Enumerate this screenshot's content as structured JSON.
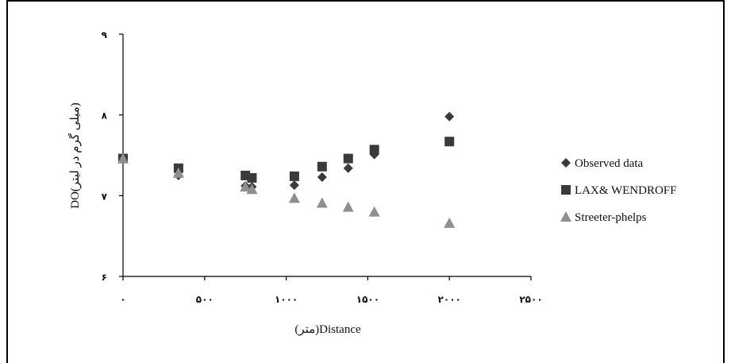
{
  "chart_data": {
    "type": "scatter",
    "title": "",
    "xlabel": "(متر)Distance",
    "ylabel": "DO(میلی گرم در لیتر)",
    "xlim": [
      0,
      2500
    ],
    "ylim": [
      6,
      9
    ],
    "x_ticks": [
      {
        "value": 0,
        "label": "۰"
      },
      {
        "value": 500,
        "label": "۵۰۰"
      },
      {
        "value": 1000,
        "label": "۱۰۰۰"
      },
      {
        "value": 1500,
        "label": "۱۵۰۰"
      },
      {
        "value": 2000,
        "label": "۲۰۰۰"
      },
      {
        "value": 2500,
        "label": "۲۵۰۰"
      }
    ],
    "y_ticks": [
      {
        "value": 6,
        "label": "۶"
      },
      {
        "value": 7,
        "label": "۷"
      },
      {
        "value": 8,
        "label": "۸"
      },
      {
        "value": 9,
        "label": "۹"
      }
    ],
    "grid": false,
    "legend_position": "right",
    "series": [
      {
        "name": "Observed data",
        "marker": "diamond",
        "color": "#3a3a3a",
        "points": [
          [
            0,
            7.46
          ],
          [
            340,
            7.25
          ],
          [
            750,
            7.12
          ],
          [
            790,
            7.11
          ],
          [
            1050,
            7.13
          ],
          [
            1220,
            7.23
          ],
          [
            1380,
            7.34
          ],
          [
            1540,
            7.51
          ],
          [
            2000,
            7.98
          ]
        ]
      },
      {
        "name": "LAX& WENDROFF",
        "marker": "square",
        "color": "#3a3a3a",
        "points": [
          [
            0,
            7.46
          ],
          [
            340,
            7.34
          ],
          [
            750,
            7.25
          ],
          [
            790,
            7.22
          ],
          [
            1050,
            7.24
          ],
          [
            1220,
            7.36
          ],
          [
            1380,
            7.46
          ],
          [
            1540,
            7.57
          ],
          [
            2000,
            7.67
          ]
        ]
      },
      {
        "name": "Streeter-phelps",
        "marker": "triangle",
        "color": "#8f8f8f",
        "points": [
          [
            0,
            7.46
          ],
          [
            340,
            7.28
          ],
          [
            750,
            7.11
          ],
          [
            790,
            7.08
          ],
          [
            1050,
            6.97
          ],
          [
            1220,
            6.91
          ],
          [
            1380,
            6.86
          ],
          [
            1540,
            6.8
          ],
          [
            2000,
            6.66
          ]
        ]
      }
    ]
  }
}
